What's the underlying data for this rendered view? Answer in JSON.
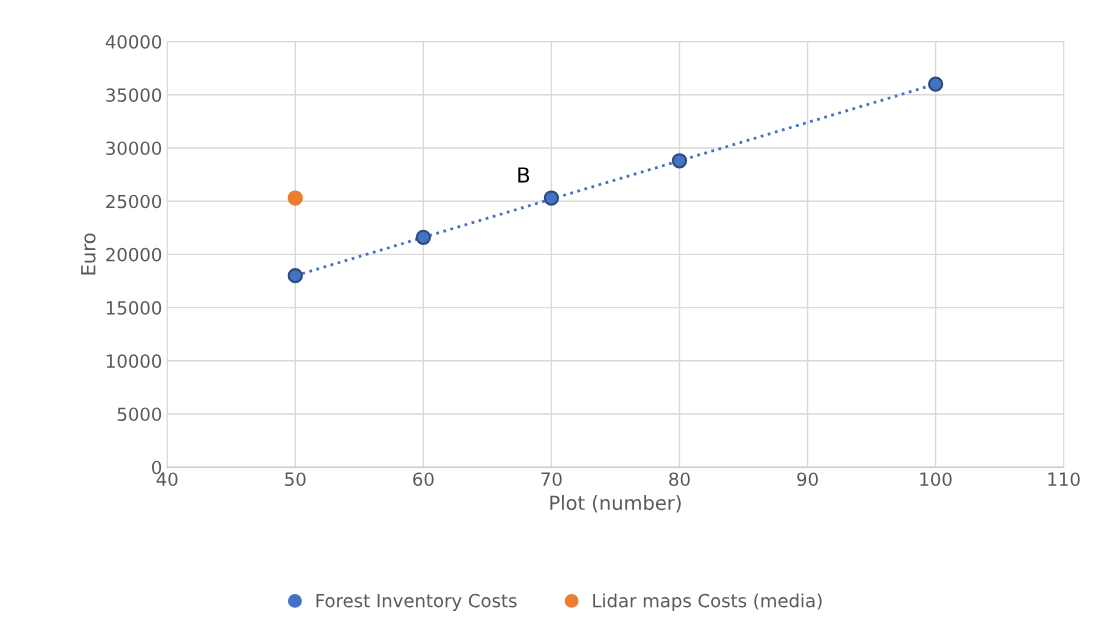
{
  "chart_data": {
    "type": "scatter",
    "xlabel": "Plot (number)",
    "ylabel": "Euro",
    "series": [
      {
        "name": "Forest Inventory Costs",
        "color": "#4472c4",
        "x": [
          50,
          60,
          70,
          80,
          100
        ],
        "values": [
          18000,
          21600,
          25300,
          28800,
          36000
        ],
        "marker": "circle"
      },
      {
        "name": "Lidar maps Costs (media)",
        "color": "#ed7d31",
        "x": [
          50
        ],
        "values": [
          25300
        ],
        "marker": "circle"
      },
      {
        "type": "line",
        "color": "#4472c4",
        "x": [
          50,
          100
        ],
        "values": [
          18000,
          36000
        ],
        "line_style": "dotted",
        "marker": "none"
      }
    ],
    "annotations": [
      {
        "text": "B",
        "x": 70,
        "y": 25300
      }
    ],
    "xlim": [
      40,
      110
    ],
    "xticks": [
      40,
      50,
      60,
      70,
      80,
      90,
      100,
      110
    ],
    "ylim": [
      0,
      40000
    ],
    "yticks": [
      0,
      5000,
      10000,
      15000,
      20000,
      25000,
      30000,
      35000,
      40000
    ],
    "grid": true,
    "legend": "bottom"
  }
}
